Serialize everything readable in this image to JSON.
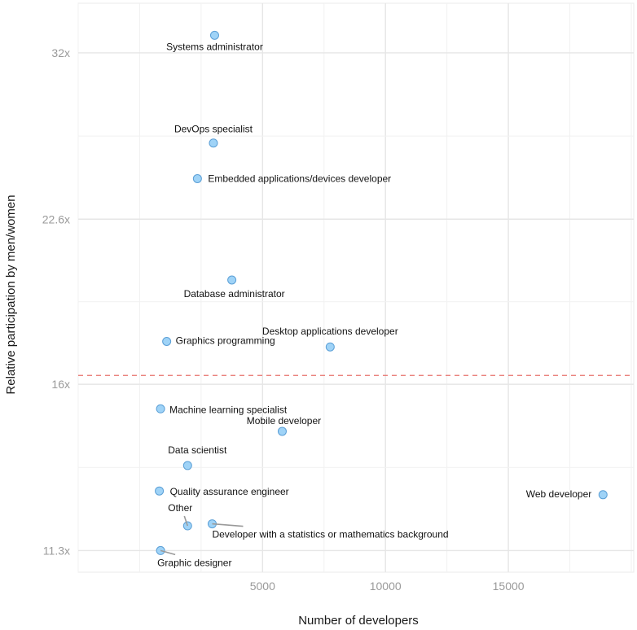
{
  "chart_data": {
    "type": "scatter",
    "xlabel": "Number of developers",
    "ylabel": "Relative participation by men/women",
    "x_ticks": [
      5000,
      10000,
      15000
    ],
    "y_ticks": [
      {
        "value": 11.3,
        "label": "11.3x"
      },
      {
        "value": 16,
        "label": "16x"
      },
      {
        "value": 22.6,
        "label": "22.6x"
      },
      {
        "value": 32,
        "label": "32x"
      }
    ],
    "xlim": [
      -2500,
      20100
    ],
    "ylim": [
      10.8,
      35.5
    ],
    "y_scale": "log2",
    "grid": true,
    "reference_line": {
      "y": 16.3,
      "color": "#e8706b",
      "style": "dashed"
    },
    "point_color": "#9fd3f7",
    "point_stroke": "#5b9fd6",
    "points": [
      {
        "label": "Systems administrator",
        "x": 3050,
        "y": 33.2,
        "anchor": "middle",
        "dx": 0,
        "dy": 18
      },
      {
        "label": "DevOps specialist",
        "x": 3000,
        "y": 26.5,
        "anchor": "middle",
        "dx": 0,
        "dy": -13
      },
      {
        "label": "Embedded applications/devices developer",
        "x": 2350,
        "y": 24.6,
        "anchor": "start",
        "dx": 13,
        "dy": 4
      },
      {
        "label": "Database administrator",
        "x": 3750,
        "y": 19.9,
        "anchor": "middle",
        "dx": 3,
        "dy": 21
      },
      {
        "label": "Desktop applications developer",
        "x": 7750,
        "y": 17.3,
        "anchor": "middle",
        "dx": 0,
        "dy": -15
      },
      {
        "label": "Graphics programming",
        "x": 1100,
        "y": 17.5,
        "anchor": "start",
        "dx": 11,
        "dy": 3
      },
      {
        "label": "Machine learning specialist",
        "x": 850,
        "y": 15.2,
        "anchor": "start",
        "dx": 11,
        "dy": 5
      },
      {
        "label": "Mobile developer",
        "x": 5800,
        "y": 14.5,
        "anchor": "middle",
        "dx": 2,
        "dy": -9
      },
      {
        "label": "Data scientist",
        "x": 1950,
        "y": 13.5,
        "anchor": "middle",
        "dx": 12,
        "dy": -15
      },
      {
        "label": "Quality assurance engineer",
        "x": 800,
        "y": 12.8,
        "anchor": "start",
        "dx": 13,
        "dy": 5
      },
      {
        "label": "Web developer",
        "x": 18850,
        "y": 12.7,
        "anchor": "end",
        "dx": -14,
        "dy": 3
      },
      {
        "label": "Other",
        "x": 1950,
        "y": 11.9,
        "anchor": "middle",
        "dx": -9,
        "dy": -18,
        "leader": true,
        "lx": -4,
        "ly": -12
      },
      {
        "label": "Developer with a statistics or mathematics background",
        "x": 2950,
        "y": 11.95,
        "anchor": "start",
        "dx": 0,
        "dy": 17,
        "leader": true,
        "lx": 38,
        "ly": 3
      },
      {
        "label": "Graphic designer",
        "x": 850,
        "y": 11.3,
        "anchor": "start",
        "dx": -4,
        "dy": 19,
        "leader": true,
        "lx": 18,
        "ly": 5
      }
    ]
  }
}
